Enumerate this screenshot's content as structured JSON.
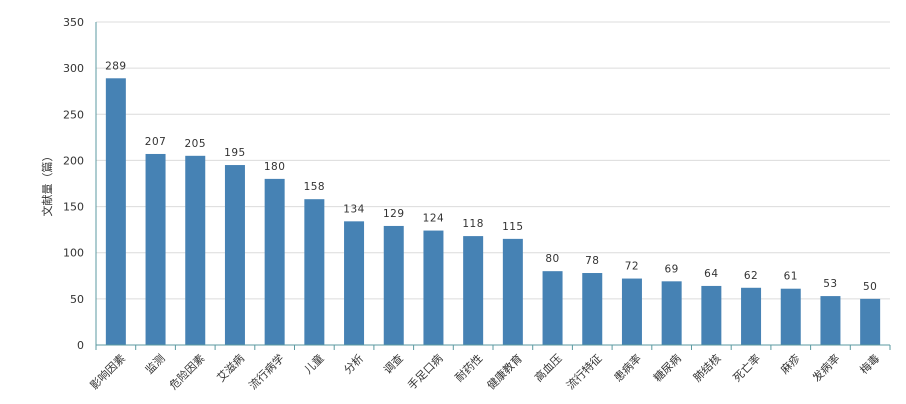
{
  "chart_data": {
    "type": "bar",
    "title": "",
    "xlabel": "",
    "ylabel": "文献量（篇）",
    "ylim": [
      0,
      350
    ],
    "yticks": [
      0,
      50,
      100,
      150,
      200,
      250,
      300,
      350
    ],
    "grid": true,
    "legend": "none",
    "categories": [
      "影响因素",
      "监测",
      "危险因素",
      "艾滋病",
      "流行病学",
      "儿童",
      "分析",
      "调查",
      "手足口病",
      "耐药性",
      "健康教育",
      "高血压",
      "流行特征",
      "患病率",
      "糖尿病",
      "肺结核",
      "死亡率",
      "麻疹",
      "发病率",
      "梅毒"
    ],
    "values": [
      289,
      207,
      205,
      195,
      180,
      158,
      134,
      129,
      124,
      118,
      115,
      80,
      78,
      72,
      69,
      64,
      62,
      61,
      53,
      50
    ],
    "bar_color": "#4682b4",
    "axis_color": "#5b9aa0",
    "grid_color": "#dcdcdc"
  }
}
